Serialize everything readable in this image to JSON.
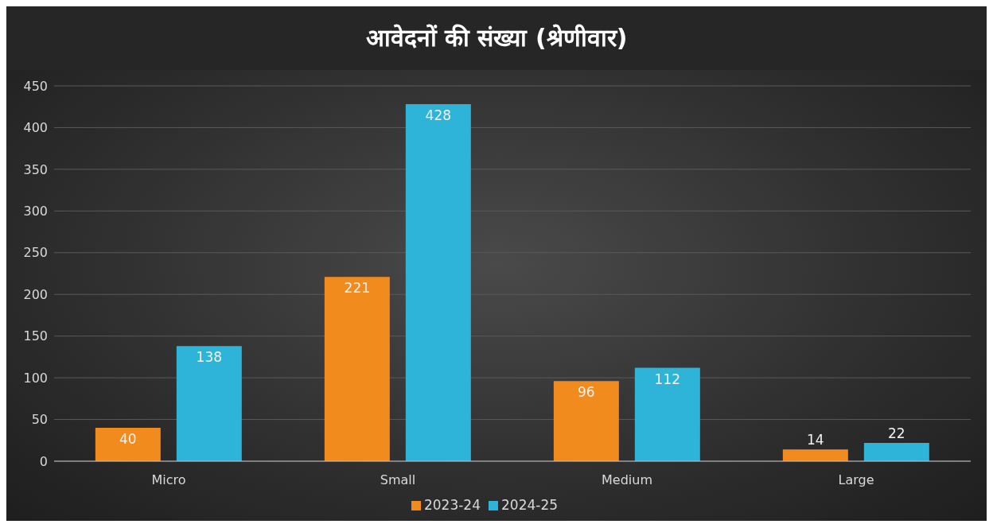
{
  "chart_data": {
    "type": "bar",
    "title": "आवेदनों की संख्या (श्रेणीवार)",
    "categories": [
      "Micro",
      "Small",
      "Medium",
      "Large"
    ],
    "series": [
      {
        "name": "2023-24",
        "color": "#f28b1e",
        "values": [
          40,
          221,
          96,
          14
        ]
      },
      {
        "name": "2024-25",
        "color": "#2db4d8",
        "values": [
          138,
          428,
          112,
          22
        ]
      }
    ],
    "ylim": [
      0,
      450
    ],
    "yticks": [
      0,
      50,
      100,
      150,
      200,
      250,
      300,
      350,
      400,
      450
    ],
    "grid": "y",
    "legend": "bottom",
    "data_labels": true
  }
}
